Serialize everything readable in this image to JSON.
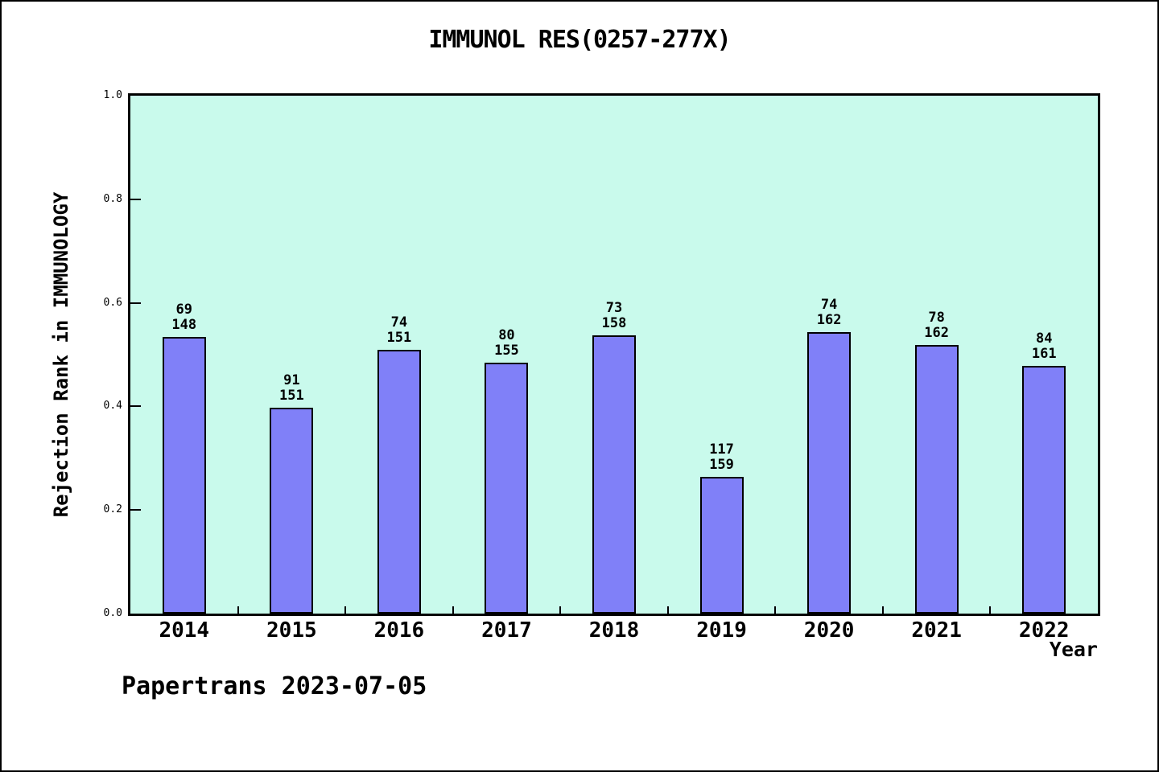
{
  "figure": {
    "title": "IMMUNOL RES(0257-277X)",
    "footer": "Papertrans 2023-07-05"
  },
  "chart_data": {
    "type": "bar",
    "title": "IMMUNOL RES(0257-277X)",
    "xlabel": "Year",
    "ylabel": "Rejection Rank in IMMUNOLOGY",
    "categories": [
      "2014",
      "2015",
      "2016",
      "2017",
      "2018",
      "2019",
      "2020",
      "2021",
      "2022"
    ],
    "values": [
      0.534,
      0.397,
      0.51,
      0.484,
      0.538,
      0.264,
      0.543,
      0.519,
      0.478
    ],
    "bar_labels": [
      [
        "69",
        "148"
      ],
      [
        "91",
        "151"
      ],
      [
        "74",
        "151"
      ],
      [
        "80",
        "155"
      ],
      [
        "73",
        "158"
      ],
      [
        "117",
        "159"
      ],
      [
        "74",
        "162"
      ],
      [
        "78",
        "162"
      ],
      [
        "84",
        "161"
      ]
    ],
    "ylim": [
      0.0,
      1.0
    ],
    "yticks": [
      "0.0",
      "0.2",
      "0.4",
      "0.6",
      "0.8",
      "1.0"
    ],
    "grid": false,
    "legend": false,
    "colors": {
      "bar_fill": "#8080f8",
      "bar_edge": "#000000",
      "plot_background": "#c9faec",
      "figure_background": "#ffffff",
      "axis": "#000000"
    }
  }
}
